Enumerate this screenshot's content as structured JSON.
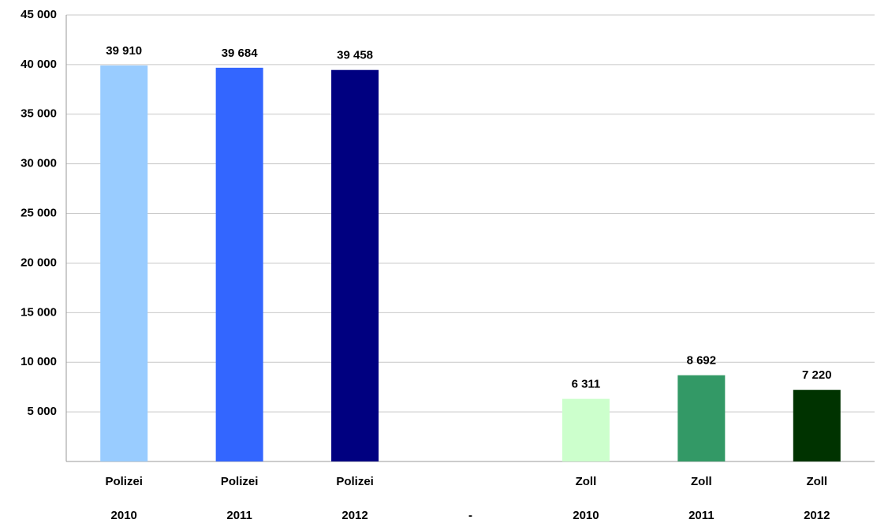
{
  "chart_data": {
    "type": "bar",
    "categories": [
      [
        "Polizei",
        "2010"
      ],
      [
        "Polizei",
        "2011"
      ],
      [
        "Polizei",
        "2012"
      ],
      [
        "-"
      ],
      [
        "Zoll",
        "2010"
      ],
      [
        "Zoll",
        "2011"
      ],
      [
        "Zoll",
        "2012"
      ]
    ],
    "values": [
      39910,
      39684,
      39458,
      null,
      6311,
      8692,
      7220
    ],
    "value_labels": [
      "39 910",
      "39 684",
      "39 458",
      null,
      "6 311",
      "8 692",
      "7 220"
    ],
    "colors": [
      "#99ccff",
      "#3366ff",
      "#000080",
      null,
      "#ccffcc",
      "#339966",
      "#003300"
    ],
    "ylim": [
      0,
      45000
    ],
    "yticks": [
      {
        "value": 5000,
        "label": "5 000"
      },
      {
        "value": 10000,
        "label": "10 000"
      },
      {
        "value": 15000,
        "label": "15 000"
      },
      {
        "value": 20000,
        "label": "20 000"
      },
      {
        "value": 25000,
        "label": "25 000"
      },
      {
        "value": 30000,
        "label": "30 000"
      },
      {
        "value": 35000,
        "label": "35 000"
      },
      {
        "value": 40000,
        "label": "40 000"
      },
      {
        "value": 45000,
        "label": "45 000"
      }
    ],
    "grid": true
  }
}
